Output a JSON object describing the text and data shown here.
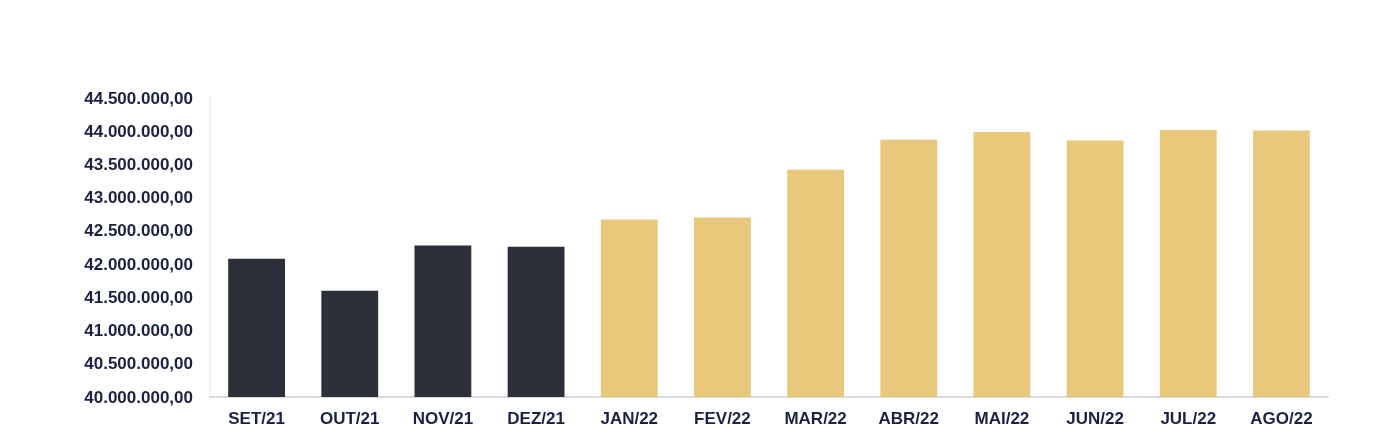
{
  "chart_data": {
    "type": "bar",
    "categories": [
      "SET/21",
      "OUT/21",
      "NOV/21",
      "DEZ/21",
      "JAN/22",
      "FEV/22",
      "MAR/22",
      "ABR/22",
      "MAI/22",
      "JUN/22",
      "JUL/22",
      "AGO/22"
    ],
    "values": [
      42080000,
      41600000,
      42280000,
      42260000,
      42670000,
      42700000,
      43420000,
      43870000,
      43990000,
      43860000,
      44020000,
      44010000
    ],
    "colors": [
      "#2d3038",
      "#2d3038",
      "#2d3038",
      "#2d3038",
      "#e8c87a",
      "#e8c87a",
      "#e8c87a",
      "#e8c87a",
      "#e8c87a",
      "#e8c87a",
      "#e8c87a",
      "#e8c87a"
    ],
    "ylim": [
      40000000,
      44500000
    ],
    "yticks": [
      {
        "value": 40000000,
        "label": "40.000.000,00"
      },
      {
        "value": 40500000,
        "label": "40.500.000,00"
      },
      {
        "value": 41000000,
        "label": "41.000.000,00"
      },
      {
        "value": 41500000,
        "label": "41.500.000,00"
      },
      {
        "value": 42000000,
        "label": "42.000.000,00"
      },
      {
        "value": 42500000,
        "label": "42.500.000,00"
      },
      {
        "value": 43000000,
        "label": "43.000.000,00"
      },
      {
        "value": 43500000,
        "label": "43.500.000,00"
      },
      {
        "value": 44000000,
        "label": "44.000.000,00"
      },
      {
        "value": 44500000,
        "label": "44.500.000,00"
      }
    ]
  }
}
